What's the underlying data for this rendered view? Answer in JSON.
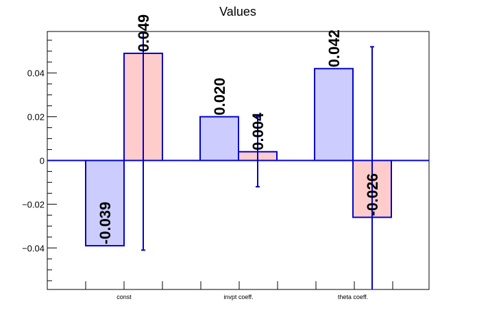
{
  "chart_data": {
    "type": "bar",
    "title": "Values",
    "categories": [
      "const",
      "invpt coeff.",
      "theta coeff."
    ],
    "series": [
      {
        "values": [
          -0.039,
          0.02,
          0.042
        ],
        "value_labels": [
          "-0.039",
          "0.020",
          "0.042"
        ],
        "errors": [
          0,
          0,
          0
        ],
        "color": "#ccccff",
        "edge_color": "#0000cc"
      },
      {
        "values": [
          0.049,
          0.004,
          -0.026
        ],
        "value_labels": [
          "0.049",
          "0.004",
          "-0.026"
        ],
        "errors": [
          0.09,
          0.016,
          0.078
        ],
        "color": "#ffcccc",
        "edge_color": "#0000cc"
      }
    ],
    "ylim": [
      -0.059,
      0.059
    ],
    "yticks": [
      -0.04,
      -0.02,
      0,
      0.02,
      0.04
    ],
    "ytick_labels": [
      "−0.04",
      "−0.02",
      "0",
      "0.02",
      "0.04"
    ],
    "xlabel": "",
    "ylabel": "",
    "grid": false,
    "legend": "none"
  }
}
